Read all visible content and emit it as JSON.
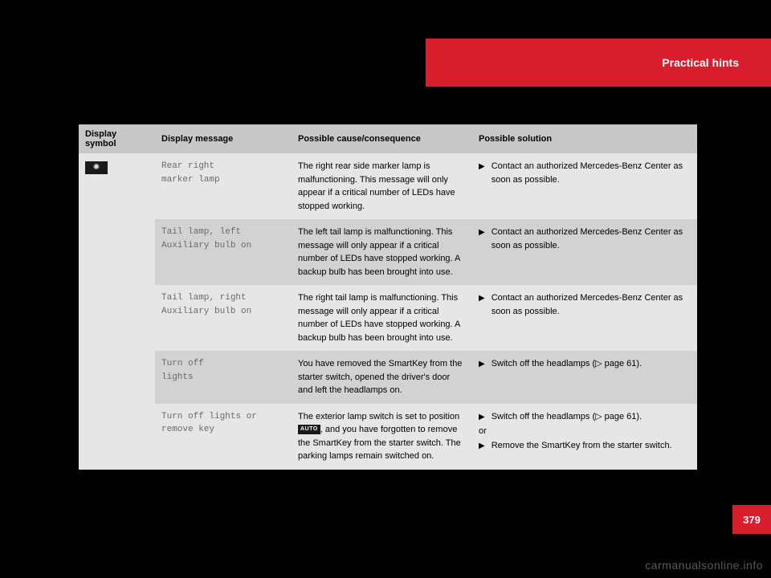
{
  "header": {
    "section_title": "Practical hints"
  },
  "page_number": "379",
  "watermark": "carmanualsonline.info",
  "table": {
    "columns": {
      "symbol": "Display symbol",
      "message": "Display message",
      "cause": "Possible cause/consequence",
      "solution": "Possible solution"
    },
    "symbol_glyph": "✺",
    "auto_label": "AUTO",
    "rows": [
      {
        "message_line1": "Rear right",
        "message_line2": "marker lamp",
        "cause": "The right rear side marker lamp is malfunctioning. This message will only appear if a critical number of LEDs have stopped working.",
        "solutions": [
          {
            "text": "Contact an authorized Mercedes-Benz Center as soon as possible."
          }
        ]
      },
      {
        "message_line1": "Tail lamp, left",
        "message_line2": "Auxiliary bulb on",
        "cause": "The left tail lamp is malfunctioning. This message will only appear if a critical number of LEDs have stopped working. A backup bulb has been brought into use.",
        "solutions": [
          {
            "text": "Contact an authorized Mercedes-Benz Center as soon as possible."
          }
        ]
      },
      {
        "message_line1": "Tail lamp, right",
        "message_line2": "Auxiliary bulb on",
        "cause": "The right tail lamp is malfunction­ing. This message will only appear if a critical number of LEDs have stopped working. A backup bulb has been brought into use.",
        "solutions": [
          {
            "text": "Contact an authorized Mercedes-Benz Center as soon as possible."
          }
        ]
      },
      {
        "message_line1": "Turn off",
        "message_line2": "lights",
        "cause": "You have removed the SmartKey from the starter switch, opened the driver's door and left the headlamps on.",
        "solutions": [
          {
            "text": "Switch off the headlamps (▷ page 61)."
          }
        ]
      },
      {
        "message_line1": "Turn off lights or",
        "message_line2": "remove key",
        "cause_pre": "The exterior lamp switch is set to position ",
        "cause_post": ", and you have forgot­ten to remove the SmartKey from the starter switch. The parking lamps remain switched on.",
        "solutions": [
          {
            "text": "Switch off the headlamps (▷ page 61)."
          }
        ],
        "or": "or",
        "solutions2": [
          {
            "text": "Remove the SmartKey from the starter switch."
          }
        ]
      }
    ]
  }
}
